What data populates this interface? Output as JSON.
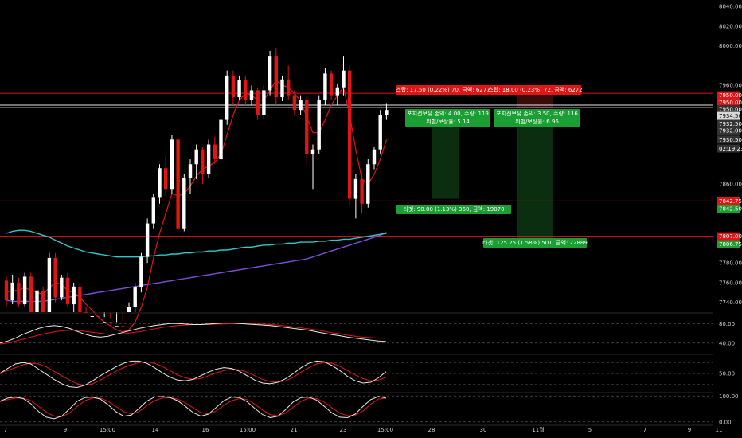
{
  "colors": {
    "background": "#000000",
    "bull": "#ffffff",
    "bear": "#e01515",
    "ma_fast": "#e01515",
    "ma_slow": "#2fc7c7",
    "ma_long": "#7a4fd6",
    "zone_green": "#0a2e0f",
    "zone_red": "#3a0b0b",
    "label_red": "#e01515",
    "label_green": "#1b9e33",
    "label_dark": "#333333"
  },
  "chart_data": {
    "type": "candlestick",
    "x_ticks": [
      "7",
      "9",
      "15:00",
      "14",
      "16",
      "15:00",
      "21",
      "23",
      "15:00",
      "28",
      "30",
      "11월",
      "5",
      "7",
      "9",
      "11"
    ],
    "y_ticks": [
      "8040.00",
      "8020.00",
      "8000.00",
      "7960.00",
      "7860.00",
      "7780.00",
      "7760.00",
      "7740.00"
    ],
    "ylim": [
      7730,
      8045
    ],
    "price_tags": [
      {
        "text": "7950.00",
        "price": 7950,
        "kind": "red"
      },
      {
        "text": "7950.00",
        "price": 7943,
        "kind": "red"
      },
      {
        "text": "7950.00",
        "price": 7936,
        "kind": "dark"
      },
      {
        "text": "7934.50",
        "price": 7929,
        "kind": "light"
      },
      {
        "text": "7932.50",
        "price": 7921,
        "kind": "dark"
      },
      {
        "text": "7932.00",
        "price": 7914,
        "kind": "dark"
      },
      {
        "text": "7930.50",
        "price": 7905,
        "kind": "dark"
      },
      {
        "text": "02:19:23",
        "price": 7896,
        "kind": "dark"
      },
      {
        "text": "7842.75",
        "price": 7842.75,
        "kind": "red"
      },
      {
        "text": "7842.50",
        "price": 7835,
        "kind": "green"
      },
      {
        "text": "7807.00",
        "price": 7807,
        "kind": "red"
      },
      {
        "text": "7806.75",
        "price": 7799,
        "kind": "green"
      }
    ],
    "h_lines": [
      {
        "price": 7952,
        "color": "#e01515"
      },
      {
        "price": 7940,
        "color": "#e8e8e8"
      },
      {
        "price": 7937.5,
        "color": "#e8e8e8"
      },
      {
        "price": 7842.75,
        "color": "#e01515"
      },
      {
        "price": 7807,
        "color": "#e01515"
      }
    ],
    "candles": [
      [
        7762,
        7766,
        7736,
        7742
      ],
      [
        7742,
        7768,
        7738,
        7760
      ],
      [
        7760,
        7765,
        7735,
        7738
      ],
      [
        7738,
        7770,
        7736,
        7766
      ],
      [
        7766,
        7770,
        7725,
        7730
      ],
      [
        7730,
        7755,
        7728,
        7752
      ],
      [
        7752,
        7756,
        7720,
        7725
      ],
      [
        7725,
        7790,
        7722,
        7785
      ],
      [
        7785,
        7790,
        7740,
        7745
      ],
      [
        7745,
        7768,
        7742,
        7765
      ],
      [
        7765,
        7770,
        7735,
        7738
      ],
      [
        7738,
        7760,
        7730,
        7756
      ],
      [
        7756,
        7760,
        7725,
        7730
      ],
      [
        7730,
        7735,
        7710,
        7712
      ],
      [
        7712,
        7730,
        7708,
        7726
      ],
      [
        7726,
        7730,
        7705,
        7710
      ],
      [
        7710,
        7725,
        7700,
        7720
      ],
      [
        7720,
        7724,
        7698,
        7702
      ],
      [
        7702,
        7720,
        7698,
        7716
      ],
      [
        7716,
        7720,
        7700,
        7705
      ],
      [
        7705,
        7740,
        7702,
        7735
      ],
      [
        7735,
        7760,
        7730,
        7755
      ],
      [
        7755,
        7790,
        7750,
        7786
      ],
      [
        7786,
        7825,
        7780,
        7820
      ],
      [
        7820,
        7850,
        7815,
        7846
      ],
      [
        7846,
        7880,
        7840,
        7876
      ],
      [
        7876,
        7888,
        7848,
        7855
      ],
      [
        7855,
        7910,
        7850,
        7905
      ],
      [
        7905,
        7908,
        7810,
        7815
      ],
      [
        7815,
        7870,
        7812,
        7866
      ],
      [
        7866,
        7885,
        7850,
        7880
      ],
      [
        7880,
        7900,
        7865,
        7895
      ],
      [
        7895,
        7898,
        7860,
        7870
      ],
      [
        7870,
        7905,
        7866,
        7900
      ],
      [
        7900,
        7908,
        7880,
        7885
      ],
      [
        7885,
        7930,
        7880,
        7925
      ],
      [
        7925,
        7975,
        7920,
        7970
      ],
      [
        7970,
        7975,
        7940,
        7948
      ],
      [
        7948,
        7970,
        7945,
        7965
      ],
      [
        7965,
        7970,
        7940,
        7945
      ],
      [
        7945,
        7960,
        7940,
        7955
      ],
      [
        7955,
        7958,
        7925,
        7930
      ],
      [
        7930,
        7960,
        7925,
        7955
      ],
      [
        7955,
        7995,
        7950,
        7990
      ],
      [
        7990,
        7998,
        7940,
        7948
      ],
      [
        7948,
        7970,
        7944,
        7966
      ],
      [
        7966,
        7980,
        7945,
        7950
      ],
      [
        7950,
        7955,
        7930,
        7935
      ],
      [
        7935,
        7950,
        7930,
        7945
      ],
      [
        7945,
        7950,
        7880,
        7890
      ],
      [
        7890,
        7900,
        7855,
        7895
      ],
      [
        7895,
        7950,
        7890,
        7945
      ],
      [
        7945,
        7978,
        7940,
        7972
      ],
      [
        7972,
        7975,
        7945,
        7950
      ],
      [
        7950,
        7962,
        7940,
        7958
      ],
      [
        7958,
        7990,
        7950,
        7975
      ],
      [
        7975,
        7980,
        7838,
        7845
      ],
      [
        7845,
        7870,
        7825,
        7865
      ],
      [
        7865,
        7872,
        7830,
        7840
      ],
      [
        7840,
        7885,
        7836,
        7880
      ],
      [
        7880,
        7898,
        7875,
        7895
      ],
      [
        7895,
        7935,
        7890,
        7930
      ],
      [
        7930,
        7942,
        7925,
        7935
      ]
    ],
    "ma_fast": [
      7750,
      7752,
      7752,
      7755,
      7752,
      7750,
      7748,
      7755,
      7760,
      7758,
      7752,
      7750,
      7745,
      7738,
      7732,
      7725,
      7720,
      7716,
      7712,
      7710,
      7712,
      7720,
      7735,
      7755,
      7785,
      7810,
      7830,
      7850,
      7848,
      7850,
      7858,
      7868,
      7875,
      7878,
      7882,
      7890,
      7910,
      7930,
      7945,
      7952,
      7950,
      7945,
      7945,
      7955,
      7965,
      7960,
      7958,
      7952,
      7944,
      7928,
      7912,
      7912,
      7925,
      7940,
      7950,
      7958,
      7930,
      7895,
      7865,
      7860,
      7870,
      7885,
      7905
    ],
    "ma_slow": [
      7810,
      7812,
      7813,
      7813,
      7812,
      7810,
      7808,
      7806,
      7803,
      7800,
      7797,
      7795,
      7793,
      7791,
      7790,
      7789,
      7788,
      7787,
      7786,
      7786,
      7786,
      7786,
      7786,
      7787,
      7787,
      7788,
      7788,
      7789,
      7789,
      7790,
      7790,
      7791,
      7791,
      7792,
      7792,
      7793,
      7793,
      7794,
      7795,
      7796,
      7796,
      7797,
      7798,
      7798,
      7799,
      7799,
      7800,
      7800,
      7801,
      7801,
      7801,
      7802,
      7802,
      7803,
      7803,
      7804,
      7804,
      7805,
      7806,
      7807,
      7808,
      7809,
      7810
    ],
    "ma_long": [
      7742,
      7741,
      7741,
      7741,
      7741,
      7741,
      7741,
      7742,
      7743,
      7744,
      7745,
      7746,
      7747,
      7748,
      7749,
      7750,
      7751,
      7752,
      7753,
      7754,
      7755,
      7756,
      7757,
      7758,
      7759,
      7760,
      7761,
      7762,
      7763,
      7764,
      7765,
      7766,
      7767,
      7768,
      7769,
      7770,
      7771,
      7772,
      7773,
      7774,
      7775,
      7776,
      7777,
      7778,
      7779,
      7780,
      7781,
      7782,
      7783,
      7784,
      7786,
      7788,
      7790,
      7792,
      7794,
      7796,
      7798,
      7800,
      7802,
      7804,
      7806,
      7808,
      7811
    ],
    "positions": [
      {
        "stop_label": "스탑: 17.50 (0.22%) 70, 금액: 6277",
        "box_lines": [
          "포지션보유 손익: 4.00, 수량: 119",
          "위험/보상률: 5.14"
        ],
        "target_label": "타겟: 90.00 (1.13%) 360, 금액: 19070"
      },
      {
        "stop_label": "스탑: 18.00 (0.23%) 72, 금액: 6272",
        "box_lines": [
          "포지션보유 손익: 3.50, 수량: 116",
          "위험/보상률: 6.96"
        ],
        "target_label": "타겟: 125.25 (1.58%) 501, 금액: 22889"
      }
    ],
    "oscillators": [
      {
        "name": "osc1",
        "y_ticks": [
          "80.00",
          "40.00"
        ],
        "levels": [
          80,
          40
        ],
        "ylim": [
          20,
          100
        ],
        "white": [
          40,
          44,
          50,
          58,
          64,
          70,
          74,
          76,
          74,
          70,
          64,
          58,
          54,
          52,
          54,
          58,
          62,
          66,
          70,
          73,
          76,
          78,
          80,
          80,
          79,
          78,
          78,
          79,
          80,
          81,
          81,
          80,
          79,
          78,
          77,
          76,
          74,
          72,
          70,
          68,
          66,
          63,
          60,
          57,
          55,
          52,
          50,
          48,
          46,
          44,
          43
        ],
        "red": [
          38,
          40,
          44,
          48,
          52,
          56,
          60,
          63,
          65,
          66,
          66,
          64,
          62,
          60,
          58,
          58,
          59,
          61,
          63,
          66,
          69,
          72,
          74,
          76,
          77,
          78,
          78,
          78,
          79,
          79,
          80,
          80,
          80,
          79,
          79,
          78,
          77,
          75,
          73,
          71,
          69,
          67,
          64,
          61,
          59,
          56,
          54,
          52,
          51,
          50,
          50
        ]
      },
      {
        "name": "osc2",
        "y_ticks": [
          "50.00"
        ],
        "levels": [
          80,
          50,
          20
        ],
        "ylim": [
          0,
          100
        ],
        "white": [
          50,
          64,
          76,
          80,
          76,
          62,
          48,
          34,
          22,
          14,
          12,
          18,
          30,
          44,
          56,
          68,
          78,
          84,
          84,
          78,
          66,
          52,
          40,
          32,
          30,
          34,
          44,
          54,
          62,
          66,
          64,
          56,
          44,
          32,
          24,
          22,
          26,
          36,
          50,
          66,
          78,
          84,
          82,
          72,
          58,
          42,
          30,
          24,
          26,
          38,
          55
        ],
        "red": [
          52,
          58,
          66,
          74,
          78,
          76,
          68,
          56,
          44,
          32,
          22,
          18,
          22,
          32,
          44,
          56,
          66,
          74,
          80,
          82,
          78,
          70,
          58,
          46,
          38,
          34,
          36,
          44,
          52,
          58,
          62,
          60,
          54,
          44,
          34,
          28,
          26,
          30,
          40,
          54,
          66,
          76,
          80,
          78,
          70,
          58,
          46,
          36,
          30,
          32,
          40
        ]
      },
      {
        "name": "osc3",
        "y_ticks": [
          "100.00",
          "0.00"
        ],
        "levels": [
          100,
          0
        ],
        "ylim": [
          -10,
          110
        ],
        "white": [
          80,
          92,
          96,
          90,
          70,
          40,
          18,
          12,
          22,
          50,
          80,
          94,
          96,
          88,
          66,
          40,
          22,
          26,
          52,
          80,
          96,
          98,
          94,
          82,
          60,
          36,
          22,
          30,
          56,
          82,
          96,
          94,
          78,
          52,
          28,
          16,
          22,
          48,
          78,
          94,
          96,
          84,
          60,
          34,
          18,
          16,
          30,
          60,
          86,
          98,
          92
        ],
        "red": [
          78,
          86,
          92,
          92,
          82,
          60,
          38,
          22,
          20,
          34,
          60,
          82,
          92,
          92,
          80,
          60,
          40,
          30,
          40,
          62,
          82,
          92,
          94,
          88,
          74,
          54,
          36,
          30,
          42,
          64,
          82,
          90,
          86,
          68,
          46,
          28,
          24,
          34,
          58,
          80,
          92,
          90,
          76,
          54,
          34,
          24,
          26,
          42,
          68,
          88,
          92
        ]
      }
    ]
  }
}
